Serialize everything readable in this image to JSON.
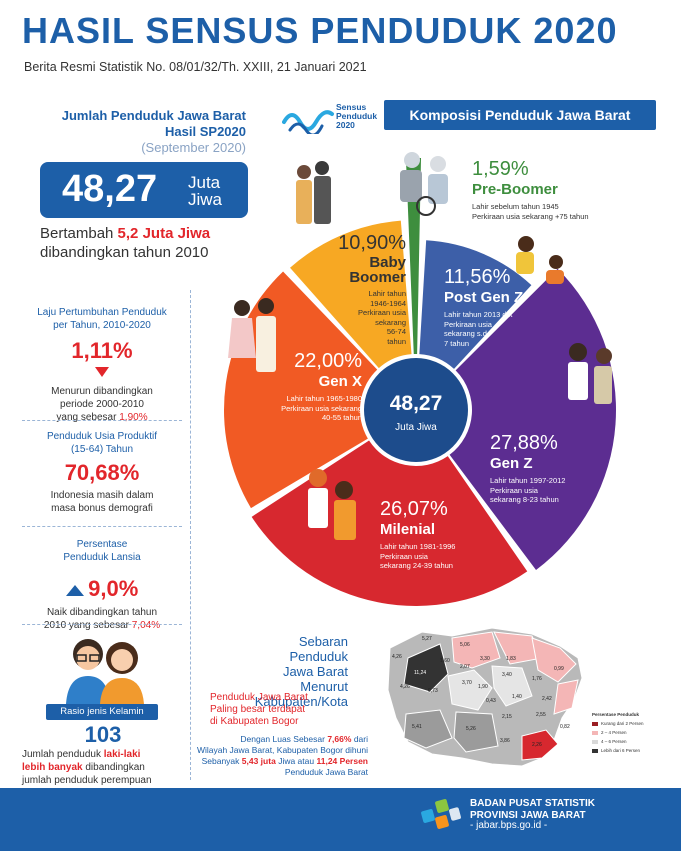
{
  "header": {
    "title": "HASIL SENSUS PENDUDUK 2020",
    "subtitle": "Berita Resmi Statistik No. 08/01/32/Th. XXIII, 21 Januari 2021"
  },
  "left": {
    "heading_line1": "Jumlah Penduduk Jawa Barat",
    "heading_line2": "Hasil SP2020",
    "period": "(September 2020)",
    "total_value": "48,27",
    "total_unit_1": "Juta",
    "total_unit_2": "Jiwa",
    "growth_pre": "Bertambah",
    "growth_value": "5,2 Juta Jiwa",
    "growth_post": "dibandingkan tahun 2010",
    "laju_label_1": "Laju Pertumbuhan Penduduk",
    "laju_label_2": "per Tahun, 2010-2020",
    "laju_value": "1,11%",
    "laju_desc_1": "Menurun dibandingkan",
    "laju_desc_2": "periode 2000-2010",
    "laju_desc_3": "yang sebesar",
    "laju_desc_val": "1,90%",
    "produktif_label_1": "Penduduk Usia Produktif",
    "produktif_label_2": "(15-64) Tahun",
    "produktif_value": "70,68%",
    "produktif_desc_1": "Indonesia masih dalam",
    "produktif_desc_2": "masa bonus demografi",
    "lansia_label_1": "Persentase",
    "lansia_label_2": "Penduduk Lansia",
    "lansia_value": "9,0%",
    "lansia_desc_1": "Naik dibandingkan tahun",
    "lansia_desc_2": "2010 yang sebesar",
    "lansia_desc_val": "7,04%",
    "rasio_label": "Rasio jenis Kelamin",
    "rasio_value": "103",
    "rasio_desc_1": "Jumlah penduduk",
    "rasio_desc_bold1": "laki-laki",
    "rasio_desc_bold2": "lebih banyak",
    "rasio_desc_2": "dibandingkan",
    "rasio_desc_3": "jumlah penduduk perempuan"
  },
  "logo": {
    "line1": "Sensus",
    "line2": "Penduduk",
    "line3": "2020"
  },
  "komposisi": {
    "title": "Komposisi Penduduk Jawa Barat",
    "center_value": "48,27",
    "center_unit": "Juta Jiwa",
    "segments": [
      {
        "pct": "1,59%",
        "name": "Pre-Boomer",
        "desc1": "Lahir sebelum tahun 1945",
        "desc2": "Perkiraan usia sekarang +75 tahun"
      },
      {
        "pct": "11,56%",
        "name": "Post Gen Z",
        "desc1": "Lahir tahun 2013 dst",
        "desc2": "Perkiraan usia",
        "desc3": "sekarang s.d.",
        "desc4": "7 tahun"
      },
      {
        "pct": "27,88%",
        "name": "Gen Z",
        "desc1": "Lahir tahun 1997-2012",
        "desc2": "Perkiraan usia",
        "desc3": "sekarang 8-23 tahun"
      },
      {
        "pct": "26,07%",
        "name": "Milenial",
        "desc1": "Lahir tahun 1981-1996",
        "desc2": "Perkiraan usia",
        "desc3": "sekarang 24-39 tahun"
      },
      {
        "pct": "22,00%",
        "name": "Gen X",
        "desc1": "Lahir tahun 1965-1980",
        "desc2": "Perkiraan usia sekarang",
        "desc3": "40-55 tahun"
      },
      {
        "pct": "10,90%",
        "name1": "Baby",
        "name2": "Boomer",
        "desc1": "Lahir tahun",
        "desc2": "1946-1964",
        "desc3": "Perkiraan usia",
        "desc4": "sekarang",
        "desc5": "56-74",
        "desc6": "tahun"
      }
    ]
  },
  "map": {
    "title_1": "Sebaran",
    "title_2": "Penduduk",
    "title_3": "Jawa Barat",
    "title_4": "Menurut",
    "title_5": "Kabupaten/Kota",
    "note_1": "Penduduk Jawa Barat",
    "note_2": "Paling besar terdapat",
    "note_3": "di Kabupaten Bogor",
    "detail_1a": "Dengan Luas Sebesar",
    "detail_1b": "7,66%",
    "detail_1c": "dari",
    "detail_2": "Wilayah Jawa Barat, Kabupaten Bogor dihuni",
    "detail_3a": "Sebanyak",
    "detail_3b": "5,43 juta",
    "detail_3c": "Jiwa atau",
    "detail_3d": "11,24 Persen",
    "detail_4": "Penduduk Jawa Barat",
    "legend_title": "Persentase Penduduk",
    "legend": [
      "Kurang dari 2 Persen",
      "2 – 4 Persen",
      "4 – 6 Persen",
      "Lebih dari 6 Persen"
    ],
    "labels": [
      "5,27",
      "5,06",
      "4,26",
      "3,30",
      "2,07",
      "1,60",
      "1,83",
      "0,99",
      "4,26",
      "3,70",
      "1,76",
      "2,42",
      "11,24",
      "0,73",
      "2,55",
      "0,82",
      "1,40",
      "5,41",
      "5,26",
      "3,86",
      "2,26",
      "2,15",
      "0,43",
      "1,90",
      "3,40"
    ]
  },
  "colors": {
    "primary": "#1d5fa8",
    "accent": "#e2262b",
    "pre_boomer": "#3e8e3e",
    "post_gen_z": "#3d5fa8",
    "gen_z": "#5c2d91",
    "milenial": "#d7282f",
    "gen_x": "#f15a24",
    "baby_boomer": "#f7a823"
  },
  "footer": {
    "org_1": "BADAN PUSAT STATISTIK",
    "org_2": "PROVINSI JAWA BARAT",
    "url": "- jabar.bps.go.id -"
  },
  "chart_data": {
    "type": "pie",
    "title": "Komposisi Penduduk Jawa Barat",
    "categories": [
      "Pre-Boomer",
      "Post Gen Z",
      "Gen Z",
      "Milenial",
      "Gen X",
      "Baby Boomer"
    ],
    "values": [
      1.59,
      11.56,
      27.88,
      26.07,
      22.0,
      10.9
    ],
    "center_label": "48,27 Juta Jiwa"
  }
}
